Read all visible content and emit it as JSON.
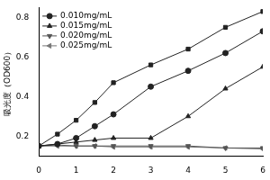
{
  "chart_data": {
    "type": "line",
    "y_label": "吸光度（OD600）",
    "x": [
      0,
      0.5,
      1,
      1.5,
      2,
      3,
      4,
      5,
      6
    ],
    "series": [
      {
        "color": "#222222",
        "marker": "square",
        "values": [
          0.15,
          0.21,
          0.28,
          0.37,
          0.47,
          0.56,
          0.64,
          0.75,
          0.83
        ]
      },
      {
        "name": "0.010mg/mL",
        "color": "#222222",
        "marker": "circle",
        "values": [
          0.15,
          0.16,
          0.19,
          0.25,
          0.31,
          0.45,
          0.53,
          0.62,
          0.73
        ]
      },
      {
        "name": "0.015mg/mL",
        "color": "#222222",
        "marker": "triangle",
        "values": [
          0.15,
          0.16,
          0.17,
          0.18,
          0.19,
          0.19,
          0.3,
          0.44,
          0.55
        ]
      },
      {
        "name": "0.020mg/mL",
        "color": "#555555",
        "marker": "triangle_down",
        "values": [
          0.15,
          0.155,
          0.15,
          0.15,
          0.15,
          0.15,
          0.15,
          0.14,
          0.14
        ]
      },
      {
        "name": "0.025mg/mL",
        "color": "#777777",
        "marker": "triangle_left",
        "values": [
          0.15,
          0.15,
          0.15,
          0.15,
          0.145,
          0.145,
          0.145,
          0.14,
          0.135
        ]
      }
    ],
    "xlim": [
      0,
      6
    ],
    "xticks": [
      0,
      1,
      2,
      3,
      4,
      5,
      6
    ],
    "ylim": [
      0.1,
      0.85
    ],
    "yticks": [
      0.2,
      0.4,
      0.6,
      0.8
    ],
    "grid": false,
    "legend": "upper left"
  }
}
